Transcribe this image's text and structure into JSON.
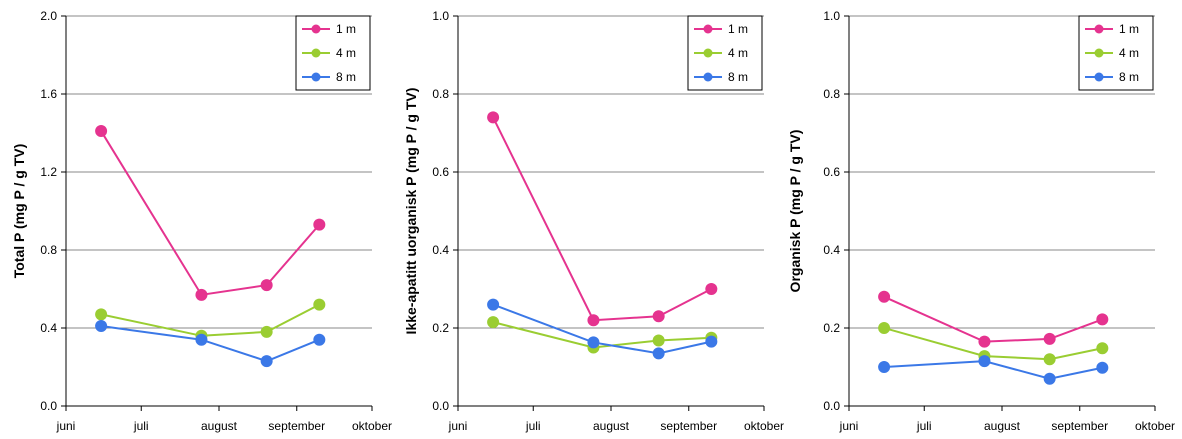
{
  "chart_data": [
    {
      "type": "line",
      "ylabel": "Total P (mg P / g TV)",
      "ylim": [
        0,
        2.0
      ],
      "yticks": [
        "0.0",
        "0.4",
        "0.8",
        "1.2",
        "1.6",
        "2.0"
      ],
      "xticks": [
        "juni",
        "juli",
        "august",
        "september",
        "oktober"
      ],
      "grid": true,
      "legend": "top-right",
      "series": [
        {
          "name": "1 m",
          "color": "#e5338f",
          "x": [
            "2008-06-15",
            "2008-07-25",
            "2008-08-20",
            "2008-09-10"
          ],
          "values": [
            1.41,
            0.57,
            0.62,
            0.93
          ]
        },
        {
          "name": "4 m",
          "color": "#9acd32",
          "x": [
            "2008-06-15",
            "2008-07-25",
            "2008-08-20",
            "2008-09-10"
          ],
          "values": [
            0.47,
            0.36,
            0.38,
            0.52
          ]
        },
        {
          "name": "8 m",
          "color": "#3b78e7",
          "x": [
            "2008-06-15",
            "2008-07-25",
            "2008-08-20",
            "2008-09-10"
          ],
          "values": [
            0.41,
            0.34,
            0.23,
            0.34
          ]
        }
      ]
    },
    {
      "type": "line",
      "ylabel": "Ikke-apatitt uorganisk P (mg P / g TV)",
      "ylim": [
        0,
        1.0
      ],
      "yticks": [
        "0.0",
        "0.2",
        "0.4",
        "0.6",
        "0.8",
        "1.0"
      ],
      "xticks": [
        "juni",
        "juli",
        "august",
        "september",
        "oktober"
      ],
      "grid": true,
      "legend": "top-right",
      "series": [
        {
          "name": "1 m",
          "color": "#e5338f",
          "x": [
            "2008-06-15",
            "2008-07-25",
            "2008-08-20",
            "2008-09-10"
          ],
          "values": [
            0.74,
            0.22,
            0.23,
            0.3
          ]
        },
        {
          "name": "4 m",
          "color": "#9acd32",
          "x": [
            "2008-06-15",
            "2008-07-25",
            "2008-08-20",
            "2008-09-10"
          ],
          "values": [
            0.215,
            0.15,
            0.168,
            0.175
          ]
        },
        {
          "name": "8 m",
          "color": "#3b78e7",
          "x": [
            "2008-06-15",
            "2008-07-25",
            "2008-08-20",
            "2008-09-10"
          ],
          "values": [
            0.26,
            0.163,
            0.135,
            0.165
          ]
        }
      ]
    },
    {
      "type": "line",
      "ylabel": "Organisk P (mg P / g TV)",
      "ylim": [
        0,
        1.0
      ],
      "yticks": [
        "0.0",
        "0.2",
        "0.4",
        "0.6",
        "0.8",
        "1.0"
      ],
      "xticks": [
        "juni",
        "juli",
        "august",
        "september",
        "oktober"
      ],
      "grid": true,
      "legend": "top-right",
      "series": [
        {
          "name": "1 m",
          "color": "#e5338f",
          "x": [
            "2008-06-15",
            "2008-07-25",
            "2008-08-20",
            "2008-09-10"
          ],
          "values": [
            0.28,
            0.165,
            0.172,
            0.222
          ]
        },
        {
          "name": "4 m",
          "color": "#9acd32",
          "x": [
            "2008-06-15",
            "2008-07-25",
            "2008-08-20",
            "2008-09-10"
          ],
          "values": [
            0.2,
            0.128,
            0.12,
            0.148
          ]
        },
        {
          "name": "8 m",
          "color": "#3b78e7",
          "x": [
            "2008-06-15",
            "2008-07-25",
            "2008-08-20",
            "2008-09-10"
          ],
          "values": [
            0.1,
            0.115,
            0.07,
            0.098
          ]
        }
      ]
    }
  ]
}
